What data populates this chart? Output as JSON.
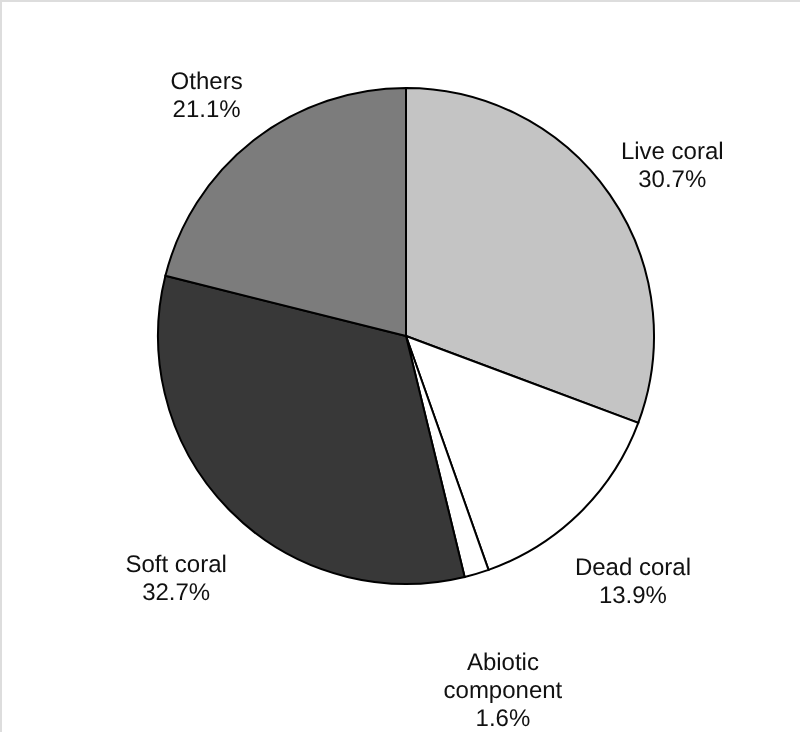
{
  "chart_data": {
    "type": "pie",
    "categories": [
      "Live coral",
      "Dead coral",
      "Abiotic component",
      "Soft coral",
      "Others"
    ],
    "values": [
      30.7,
      13.9,
      1.6,
      32.7,
      21.1
    ],
    "colors": [
      "#c4c4c4",
      "#ffffff",
      "#ffffff",
      "#383838",
      "#7c7c7c"
    ],
    "value_labels": [
      "30.7%",
      "13.9%",
      "1.6%",
      "32.7%",
      "21.1%"
    ]
  }
}
